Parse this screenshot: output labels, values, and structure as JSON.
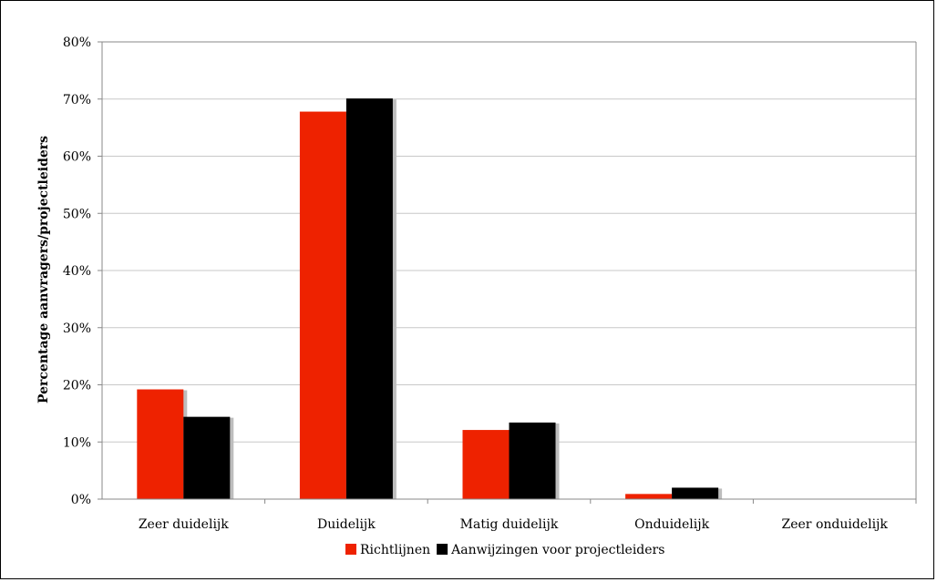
{
  "chart_data": {
    "type": "bar",
    "categories": [
      "Zeer duidelijk",
      "Duidelijk",
      "Matig duidelijk",
      "Onduidelijk",
      "Zeer onduidelijk"
    ],
    "series": [
      {
        "name": "Richtlijnen",
        "color": "#ee2200",
        "values": [
          19.2,
          67.8,
          12.1,
          0.9,
          0
        ]
      },
      {
        "name": "Aanwijzingen voor projectleiders",
        "color": "#000000",
        "values": [
          14.4,
          70.1,
          13.4,
          2.0,
          0
        ]
      }
    ],
    "ylabel": "Percentage aanvragers/projectleiders",
    "ylim": [
      0,
      80
    ],
    "yticks": [
      0,
      10,
      20,
      30,
      40,
      50,
      60,
      70,
      80
    ],
    "ytick_labels": [
      "0%",
      "10%",
      "20%",
      "30%",
      "40%",
      "50%",
      "60%",
      "70%",
      "80%"
    ],
    "grid": true,
    "legend_position": "bottom"
  }
}
